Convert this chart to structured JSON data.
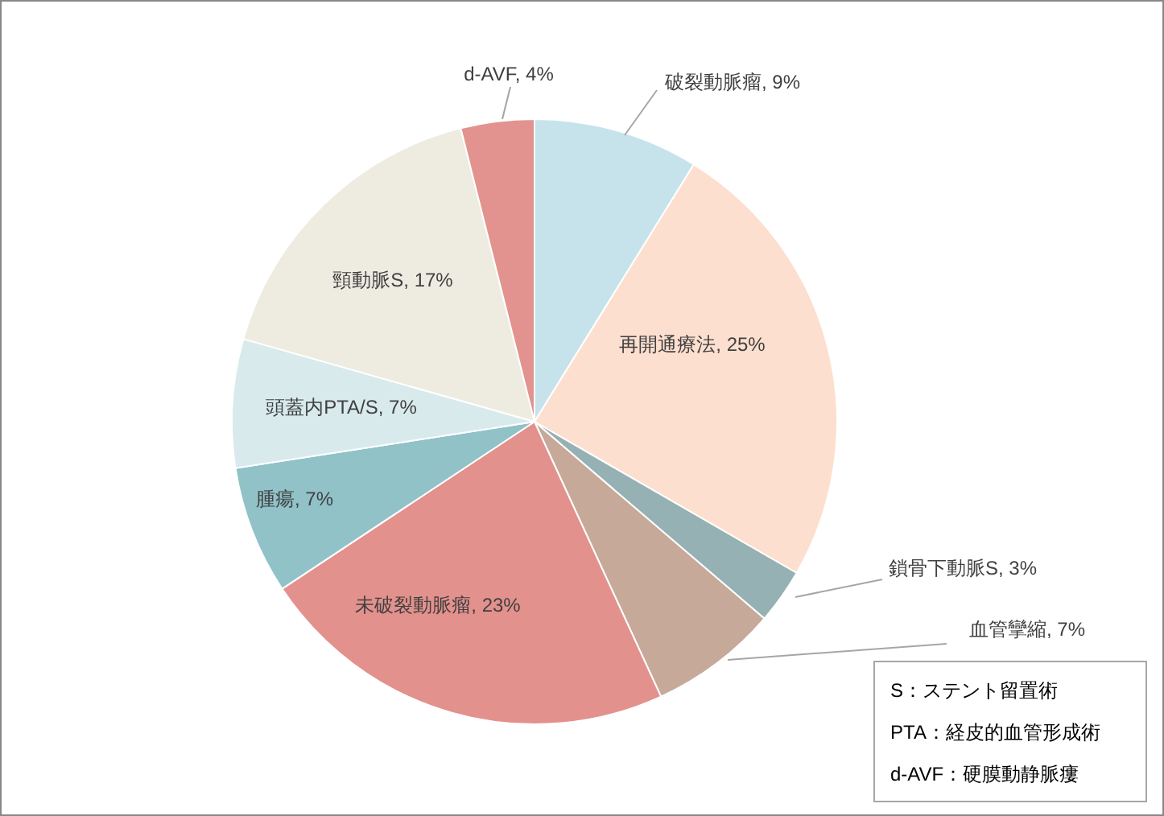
{
  "chart_data": {
    "type": "pie",
    "categories": [
      "破裂動脈瘤",
      "再開通療法",
      "鎖骨下動脈S",
      "血管攣縮",
      "未破裂動脈瘤",
      "腫瘍",
      "頭蓋内PTA/S",
      "頸動脈S",
      "d-AVF"
    ],
    "values": [
      9,
      25,
      3,
      7,
      23,
      7,
      7,
      17,
      4
    ],
    "value_labels": [
      "9%",
      "25%",
      "3%",
      "7%",
      "23%",
      "7%",
      "7%",
      "17%",
      "4%"
    ],
    "colors": [
      "#c6e3ec",
      "#fddfcf",
      "#95b1b3",
      "#c6a999",
      "#e3918d",
      "#90c2c8",
      "#d8eaec",
      "#eeebe0",
      "#e2938f"
    ],
    "annotations": [
      "S：ステント留置術",
      "PTA：経皮的血管形成術",
      "d-AVF：硬膜動静脈瘻"
    ]
  }
}
